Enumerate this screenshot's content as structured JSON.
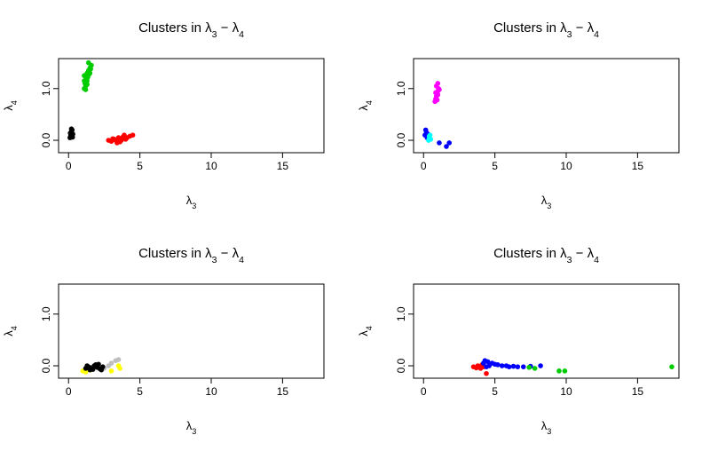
{
  "chart_data": [
    {
      "type": "scatter",
      "title_main": "Clusters in ",
      "title_math_a": "λ",
      "title_sub_a": "3",
      "title_minus": " − ",
      "title_math_b": "λ",
      "title_sub_b": "4",
      "xlabel_main": "λ",
      "xlabel_sub": "3",
      "ylabel_main": "λ",
      "ylabel_sub": "4",
      "xlim": [
        -0.7,
        17.9
      ],
      "ylim": [
        -0.24,
        1.58
      ],
      "xticks": [
        0,
        5,
        10,
        15
      ],
      "yticks": [
        0.0,
        1.0
      ],
      "xtick_labels": [
        "0",
        "5",
        "10",
        "15"
      ],
      "ytick_labels": [
        "0.0",
        "1.0"
      ],
      "series": [
        {
          "color": "#000000",
          "points": [
            [
              0.1,
              0.05
            ],
            [
              0.15,
              0.1
            ],
            [
              0.2,
              0.15
            ],
            [
              0.25,
              0.2
            ],
            [
              0.3,
              0.12
            ],
            [
              0.18,
              0.08
            ],
            [
              0.22,
              0.18
            ],
            [
              0.12,
              0.14
            ],
            [
              0.28,
              0.06
            ],
            [
              0.2,
              0.22
            ]
          ]
        },
        {
          "color": "#00cd00",
          "points": [
            [
              1.1,
              1.0
            ],
            [
              1.2,
              1.05
            ],
            [
              1.15,
              1.1
            ],
            [
              1.3,
              1.15
            ],
            [
              1.25,
              1.2
            ],
            [
              1.1,
              1.25
            ],
            [
              1.3,
              1.3
            ],
            [
              1.4,
              1.35
            ],
            [
              1.5,
              1.4
            ],
            [
              1.6,
              1.45
            ],
            [
              1.4,
              1.5
            ],
            [
              1.5,
              1.3
            ],
            [
              1.2,
              0.98
            ],
            [
              1.35,
              1.22
            ],
            [
              1.45,
              1.28
            ],
            [
              1.3,
              1.08
            ],
            [
              1.1,
              1.15
            ],
            [
              1.55,
              1.38
            ]
          ]
        },
        {
          "color": "#ff0000",
          "points": [
            [
              2.8,
              0.0
            ],
            [
              3.0,
              -0.02
            ],
            [
              3.2,
              0.02
            ],
            [
              3.4,
              -0.05
            ],
            [
              3.5,
              0.05
            ],
            [
              3.7,
              0.0
            ],
            [
              3.9,
              0.1
            ],
            [
              4.1,
              0.05
            ],
            [
              4.3,
              0.08
            ],
            [
              4.5,
              0.1
            ],
            [
              3.1,
              0.03
            ],
            [
              3.6,
              -0.03
            ],
            [
              3.3,
              0.0
            ],
            [
              4.0,
              0.02
            ],
            [
              3.8,
              0.06
            ]
          ]
        }
      ]
    },
    {
      "type": "scatter",
      "title_main": "Clusters in ",
      "title_math_a": "λ",
      "title_sub_a": "3",
      "title_minus": " − ",
      "title_math_b": "λ",
      "title_sub_b": "4",
      "xlabel_main": "λ",
      "xlabel_sub": "3",
      "ylabel_main": "λ",
      "ylabel_sub": "4",
      "xlim": [
        -0.7,
        17.9
      ],
      "ylim": [
        -0.24,
        1.58
      ],
      "xticks": [
        0,
        5,
        10,
        15
      ],
      "yticks": [
        0.0,
        1.0
      ],
      "xtick_labels": [
        "0",
        "5",
        "10",
        "15"
      ],
      "ytick_labels": [
        "0.0",
        "1.0"
      ],
      "series": [
        {
          "color": "#ff00ff",
          "points": [
            [
              0.8,
              0.75
            ],
            [
              0.85,
              0.8
            ],
            [
              0.9,
              0.85
            ],
            [
              0.95,
              0.9
            ],
            [
              1.0,
              0.95
            ],
            [
              1.05,
              1.0
            ],
            [
              0.9,
              1.05
            ],
            [
              1.0,
              1.1
            ],
            [
              0.85,
              0.92
            ],
            [
              1.1,
              0.98
            ],
            [
              0.95,
              0.78
            ],
            [
              1.0,
              0.88
            ]
          ]
        },
        {
          "color": "#0000ff",
          "points": [
            [
              0.1,
              0.1
            ],
            [
              0.2,
              0.15
            ],
            [
              0.15,
              0.2
            ],
            [
              0.25,
              0.05
            ],
            [
              1.1,
              -0.05
            ],
            [
              1.6,
              -0.12
            ],
            [
              1.8,
              -0.05
            ],
            [
              0.3,
              0.12
            ]
          ]
        },
        {
          "color": "#00ffff",
          "points": [
            [
              0.35,
              0.0
            ],
            [
              0.4,
              0.05
            ],
            [
              0.45,
              0.1
            ],
            [
              0.5,
              0.02
            ],
            [
              0.4,
              0.08
            ]
          ]
        }
      ]
    },
    {
      "type": "scatter",
      "title_main": "Clusters in ",
      "title_math_a": "λ",
      "title_sub_a": "3",
      "title_minus": " − ",
      "title_math_b": "λ",
      "title_sub_b": "4",
      "xlabel_main": "λ",
      "xlabel_sub": "3",
      "ylabel_main": "λ",
      "ylabel_sub": "4",
      "xlim": [
        -0.7,
        17.9
      ],
      "ylim": [
        -0.24,
        1.58
      ],
      "xticks": [
        0,
        5,
        10,
        15
      ],
      "yticks": [
        0.0,
        1.0
      ],
      "xtick_labels": [
        "0",
        "5",
        "10",
        "15"
      ],
      "ytick_labels": [
        "0.0",
        "1.0"
      ],
      "series": [
        {
          "color": "#ffff00",
          "points": [
            [
              1.0,
              -0.1
            ],
            [
              1.2,
              -0.12
            ],
            [
              1.5,
              -0.08
            ],
            [
              3.0,
              -0.1
            ],
            [
              3.5,
              0.0
            ],
            [
              3.6,
              -0.05
            ]
          ]
        },
        {
          "color": "#bebebe",
          "points": [
            [
              2.5,
              -0.05
            ],
            [
              2.8,
              0.0
            ],
            [
              3.0,
              0.05
            ],
            [
              3.3,
              0.1
            ],
            [
              3.5,
              0.12
            ]
          ]
        },
        {
          "color": "#000000",
          "points": [
            [
              1.2,
              -0.05
            ],
            [
              1.4,
              -0.02
            ],
            [
              1.6,
              -0.04
            ],
            [
              1.8,
              0.0
            ],
            [
              2.0,
              -0.03
            ],
            [
              2.2,
              -0.06
            ],
            [
              1.9,
              0.02
            ],
            [
              1.7,
              -0.07
            ],
            [
              2.4,
              -0.02
            ],
            [
              1.5,
              -0.08
            ],
            [
              2.1,
              0.03
            ],
            [
              1.3,
              0.0
            ],
            [
              2.3,
              -0.08
            ]
          ]
        }
      ]
    },
    {
      "type": "scatter",
      "title_main": "Clusters in ",
      "title_math_a": "λ",
      "title_sub_a": "3",
      "title_minus": " − ",
      "title_math_b": "λ",
      "title_sub_b": "4",
      "xlabel_main": "λ",
      "xlabel_sub": "3",
      "ylabel_main": "λ",
      "ylabel_sub": "4",
      "xlim": [
        -0.7,
        17.9
      ],
      "ylim": [
        -0.24,
        1.58
      ],
      "xticks": [
        0,
        5,
        10,
        15
      ],
      "yticks": [
        0.0,
        1.0
      ],
      "xtick_labels": [
        "0",
        "5",
        "10",
        "15"
      ],
      "ytick_labels": [
        "0.0",
        "1.0"
      ],
      "series": [
        {
          "color": "#ff0000",
          "points": [
            [
              3.5,
              -0.02
            ],
            [
              3.8,
              0.0
            ],
            [
              4.0,
              -0.05
            ],
            [
              4.2,
              -0.02
            ],
            [
              4.4,
              -0.15
            ],
            [
              3.7,
              -0.04
            ],
            [
              4.1,
              0.02
            ]
          ]
        },
        {
          "color": "#0000ff",
          "points": [
            [
              4.2,
              0.05
            ],
            [
              4.3,
              0.1
            ],
            [
              4.5,
              0.08
            ],
            [
              4.8,
              0.05
            ],
            [
              5.0,
              0.03
            ],
            [
              5.2,
              0.02
            ],
            [
              5.5,
              0.0
            ],
            [
              5.8,
              0.0
            ],
            [
              6.0,
              -0.02
            ],
            [
              6.3,
              -0.01
            ],
            [
              6.6,
              -0.02
            ],
            [
              7.0,
              -0.02
            ],
            [
              7.5,
              -0.01
            ],
            [
              8.2,
              0.0
            ],
            [
              4.6,
              0.0
            ],
            [
              4.4,
              -0.02
            ]
          ]
        },
        {
          "color": "#00cd00",
          "points": [
            [
              7.4,
              -0.03
            ],
            [
              7.8,
              -0.05
            ],
            [
              9.5,
              -0.1
            ],
            [
              9.9,
              -0.1
            ],
            [
              17.4,
              -0.02
            ]
          ]
        }
      ]
    }
  ]
}
